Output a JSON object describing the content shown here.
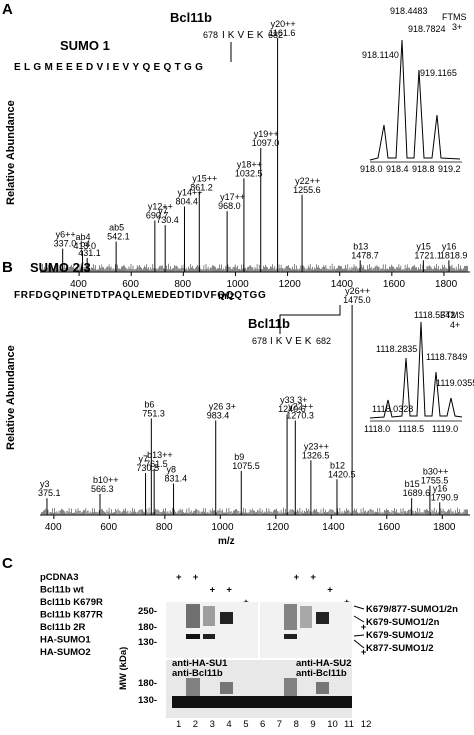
{
  "panelA": {
    "letter": "A",
    "title": "SUMO 1",
    "ylabel": "Relative Abundance",
    "xlabel": "m/z",
    "bcl_label": "Bcl11b",
    "bcl_start": "678",
    "bcl_seq": "IKVEK",
    "bcl_end": "682",
    "sequence": "ELGMEEEDVIEVYQEQTGG",
    "inset_label1": "FTMS",
    "inset_label2": "3+",
    "inset_peaks": [
      "918.4483",
      "918.1140",
      "918.7824",
      "919.1165"
    ],
    "inset_ticks": [
      "918.0",
      "918.4",
      "918.8",
      "919.2"
    ],
    "chart_data": {
      "type": "bar",
      "xlabel": "m/z",
      "ylabel": "Relative Abundance",
      "xlim": [
        250,
        1900
      ],
      "x_ticks": [
        400,
        600,
        800,
        1000,
        1200,
        1400,
        1600,
        1800
      ],
      "peaks": [
        {
          "mz": 337.0,
          "h": 0.1,
          "label": "y6++",
          "sub": "337.0"
        },
        {
          "mz": 413.0,
          "h": 0.09,
          "label": "ab4",
          "sub": "413.0"
        },
        {
          "mz": 431.1,
          "h": 0.06,
          "label": "b4",
          "sub": "431.1"
        },
        {
          "mz": 542.1,
          "h": 0.13,
          "label": "ab5",
          "sub": "542.1"
        },
        {
          "mz": 690.7,
          "h": 0.22,
          "label": "y12++",
          "sub": "690.7"
        },
        {
          "mz": 730.4,
          "h": 0.2,
          "label": "y7",
          "sub": "730.4"
        },
        {
          "mz": 804.4,
          "h": 0.28,
          "label": "y14++",
          "sub": "804.4"
        },
        {
          "mz": 861.2,
          "h": 0.34,
          "label": "y15++",
          "sub": "861.2"
        },
        {
          "mz": 968.0,
          "h": 0.26,
          "label": "y17++",
          "sub": "968.0"
        },
        {
          "mz": 1032.5,
          "h": 0.4,
          "label": "y18++",
          "sub": "1032.5"
        },
        {
          "mz": 1097.0,
          "h": 0.53,
          "label": "y19++",
          "sub": "1097.0"
        },
        {
          "mz": 1161.6,
          "h": 1.0,
          "label": "y20++",
          "sub": "1161.6"
        },
        {
          "mz": 1255.6,
          "h": 0.33,
          "label": "y22++",
          "sub": "1255.6"
        },
        {
          "mz": 1478.7,
          "h": 0.05,
          "label": "b13",
          "sub": "1478.7"
        },
        {
          "mz": 1721.1,
          "h": 0.05,
          "label": "y15",
          "sub": "1721.1"
        },
        {
          "mz": 1818.9,
          "h": 0.05,
          "label": "y16",
          "sub": "1818.9"
        }
      ]
    }
  },
  "panelB": {
    "letter": "B",
    "title": "SUMO 2/3",
    "ylabel": "Relative Abundance",
    "xlabel": "m/z",
    "bcl_label": "Bcl11b",
    "bcl_start": "678",
    "bcl_seq": "IKVEK",
    "bcl_end": "682",
    "sequence": "FRFDGQPINETDTPAQLEMEDEDTIDVFQQQTGG",
    "inset_label1": "FTMS",
    "inset_label2": "4+",
    "inset_peaks": [
      "1118.5342",
      "1118.2835",
      "1118.7849",
      "1119.0355",
      "1118.0328"
    ],
    "inset_ticks": [
      "1118.0",
      "1118.5",
      "1119.0"
    ],
    "chart_data": {
      "type": "bar",
      "xlabel": "m/z",
      "ylabel": "Relative Abundance",
      "xlim": [
        350,
        1900
      ],
      "x_ticks": [
        400,
        600,
        800,
        1000,
        1200,
        1400,
        1600,
        1800
      ],
      "peaks": [
        {
          "mz": 375.1,
          "h": 0.08,
          "label": "y3",
          "sub": "375.1"
        },
        {
          "mz": 566.3,
          "h": 0.1,
          "label": "b10++",
          "sub": "566.3"
        },
        {
          "mz": 730.5,
          "h": 0.2,
          "label": "y7",
          "sub": "730.5"
        },
        {
          "mz": 751.3,
          "h": 0.46,
          "label": "b6",
          "sub": "751.3"
        },
        {
          "mz": 761.5,
          "h": 0.22,
          "label": "b13++",
          "sub": "761.5"
        },
        {
          "mz": 831.4,
          "h": 0.15,
          "label": "y8",
          "sub": "831.4"
        },
        {
          "mz": 983.4,
          "h": 0.45,
          "label": "y26 3+",
          "sub": "983.4"
        },
        {
          "mz": 1075.5,
          "h": 0.21,
          "label": "b9",
          "sub": "1075.5"
        },
        {
          "mz": 1240.6,
          "h": 0.48,
          "label": "y33 3+",
          "sub": "1240.6"
        },
        {
          "mz": 1270.3,
          "h": 0.45,
          "label": "y22++",
          "sub": "1270.3"
        },
        {
          "mz": 1326.5,
          "h": 0.26,
          "label": "y23++",
          "sub": "1326.5"
        },
        {
          "mz": 1420.5,
          "h": 0.17,
          "label": "b12",
          "sub": "1420.5"
        },
        {
          "mz": 1475.0,
          "h": 1.0,
          "label": "y26++",
          "sub": "1475.0"
        },
        {
          "mz": 1689.6,
          "h": 0.08,
          "label": "b15",
          "sub": "1689.6"
        },
        {
          "mz": 1755.5,
          "h": 0.14,
          "label": "b30++",
          "sub": "1755.5"
        },
        {
          "mz": 1790.9,
          "h": 0.06,
          "label": "y16",
          "sub": "1790.9"
        }
      ]
    }
  },
  "panelC": {
    "letter": "C",
    "rows": [
      "pCDNA3",
      "Bcl11b wt",
      "Bcl11b K679R",
      "Bcl11b K877R",
      "Bcl11b 2R",
      "HA-SUMO1",
      "HA-SUMO2"
    ],
    "marks": [
      [
        1,
        2,
        0,
        0,
        0,
        0,
        0,
        1,
        1,
        0,
        0,
        0
      ],
      [
        0,
        0,
        1,
        1,
        0,
        0,
        0,
        0,
        0,
        1,
        0,
        0
      ],
      [
        0,
        0,
        0,
        0,
        1,
        0,
        0,
        0,
        0,
        0,
        1,
        0
      ],
      [
        0,
        0,
        0,
        0,
        0,
        1,
        0,
        0,
        0,
        0,
        1,
        0
      ],
      [
        0,
        0,
        0,
        0,
        0,
        0,
        1,
        0,
        0,
        0,
        0,
        1
      ],
      [
        0,
        1,
        0,
        1,
        1,
        1,
        1,
        0,
        0,
        0,
        0,
        0
      ],
      [
        0,
        0,
        0,
        0,
        0,
        0,
        0,
        0,
        1,
        1,
        1,
        1
      ]
    ],
    "plus": "+",
    "mw_label": "MW (kDa)",
    "mw_top": [
      "250-",
      "180-",
      "130-"
    ],
    "mw_bottom": [
      "180-",
      "130-"
    ],
    "blot1_label": "anti-HA-SU1",
    "blot2_label": "anti-HA-SU2",
    "blot3_label": "anti-Bcl11b",
    "blot4_label": "anti-Bcl11b",
    "annotations": [
      "K679/877-SUMO1/2n",
      "K679-SUMO1/2n",
      "K679-SUMO1/2",
      "K877-SUMO1/2"
    ],
    "lanes": [
      "1",
      "2",
      "3",
      "4",
      "5",
      "6",
      "7",
      "8",
      "9",
      "10",
      "11",
      "12"
    ]
  }
}
